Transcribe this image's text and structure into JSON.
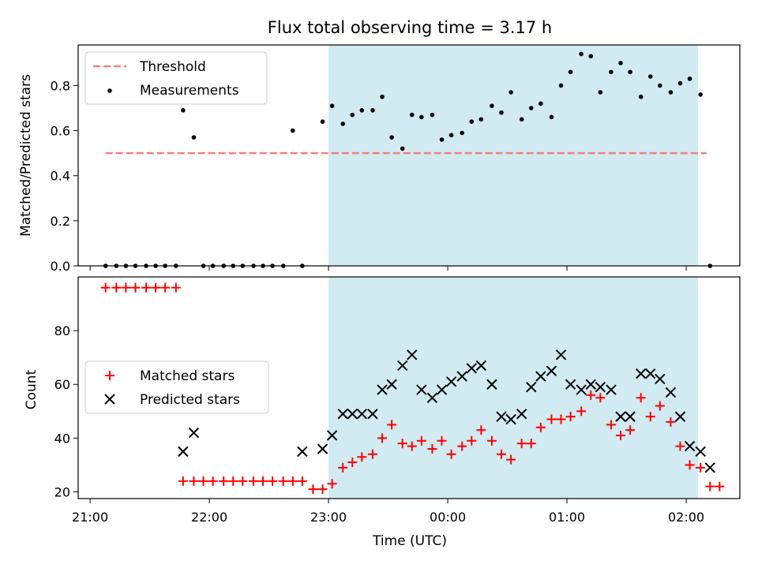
{
  "chart_data": [
    {
      "type": "scatter",
      "title": "Flux total observing time = 3.17 h",
      "xlabel": "",
      "ylabel": "Matched/Predicted stars",
      "xlim_hours": [
        20.9,
        26.45
      ],
      "ylim": [
        0,
        0.98
      ],
      "yticks": [
        0.0,
        0.2,
        0.4,
        0.6,
        0.8
      ],
      "ytick_labels": [
        "0.0",
        "0.2",
        "0.4",
        "0.6",
        "0.8"
      ],
      "shaded_span_hours": [
        23.0,
        26.1
      ],
      "threshold": {
        "name": "Threshold",
        "y": 0.5,
        "x_range_hours": [
          21.13,
          26.17
        ],
        "color": "#f08080",
        "style": "dashed"
      },
      "legend": {
        "placement": "top-left",
        "entries": [
          "Threshold",
          "Measurements"
        ]
      },
      "series": [
        {
          "name": "Measurements",
          "marker": "dot",
          "color": "#000000",
          "points": [
            [
              21.13,
              0.0
            ],
            [
              21.22,
              0.0
            ],
            [
              21.3,
              0.0
            ],
            [
              21.38,
              0.0
            ],
            [
              21.47,
              0.0
            ],
            [
              21.55,
              0.0
            ],
            [
              21.63,
              0.0
            ],
            [
              21.72,
              0.0
            ],
            [
              21.78,
              0.69
            ],
            [
              21.87,
              0.57
            ],
            [
              21.95,
              0.0
            ],
            [
              22.03,
              0.0
            ],
            [
              22.12,
              0.0
            ],
            [
              22.2,
              0.0
            ],
            [
              22.28,
              0.0
            ],
            [
              22.37,
              0.0
            ],
            [
              22.45,
              0.0
            ],
            [
              22.53,
              0.0
            ],
            [
              22.62,
              0.0
            ],
            [
              22.7,
              0.6
            ],
            [
              22.78,
              0.0
            ],
            [
              22.95,
              0.64
            ],
            [
              23.03,
              0.71
            ],
            [
              23.12,
              0.63
            ],
            [
              23.2,
              0.67
            ],
            [
              23.28,
              0.69
            ],
            [
              23.37,
              0.69
            ],
            [
              23.45,
              0.75
            ],
            [
              23.53,
              0.57
            ],
            [
              23.62,
              0.52
            ],
            [
              23.7,
              0.67
            ],
            [
              23.78,
              0.66
            ],
            [
              23.87,
              0.67
            ],
            [
              23.95,
              0.56
            ],
            [
              24.03,
              0.58
            ],
            [
              24.12,
              0.59
            ],
            [
              24.2,
              0.64
            ],
            [
              24.28,
              0.65
            ],
            [
              24.37,
              0.71
            ],
            [
              24.45,
              0.68
            ],
            [
              24.53,
              0.77
            ],
            [
              24.62,
              0.65
            ],
            [
              24.7,
              0.7
            ],
            [
              24.78,
              0.72
            ],
            [
              24.87,
              0.66
            ],
            [
              24.95,
              0.8
            ],
            [
              25.03,
              0.86
            ],
            [
              25.12,
              0.94
            ],
            [
              25.2,
              0.93
            ],
            [
              25.28,
              0.77
            ],
            [
              25.37,
              0.86
            ],
            [
              25.45,
              0.9
            ],
            [
              25.53,
              0.86
            ],
            [
              25.62,
              0.75
            ],
            [
              25.7,
              0.84
            ],
            [
              25.78,
              0.8
            ],
            [
              25.87,
              0.77
            ],
            [
              25.95,
              0.81
            ],
            [
              26.03,
              0.83
            ],
            [
              26.12,
              0.76
            ],
            [
              26.2,
              0.0
            ]
          ]
        }
      ]
    },
    {
      "type": "scatter",
      "title": "",
      "xlabel": "Time (UTC)",
      "ylabel": "Count",
      "xlim_hours": [
        20.9,
        26.45
      ],
      "ylim": [
        17.5,
        100
      ],
      "yticks": [
        20,
        40,
        60,
        80
      ],
      "ytick_labels": [
        "20",
        "40",
        "60",
        "80"
      ],
      "xticks_hours": [
        21,
        22,
        23,
        24,
        25,
        26
      ],
      "xtick_labels": [
        "21:00",
        "22:00",
        "23:00",
        "00:00",
        "01:00",
        "02:00"
      ],
      "shaded_span_hours": [
        23.0,
        26.1
      ],
      "legend": {
        "placement": "center-left",
        "entries": [
          "Matched stars",
          "Predicted stars"
        ]
      },
      "series": [
        {
          "name": "Matched stars",
          "marker": "plus",
          "color": "#ff0000",
          "points": [
            [
              21.13,
              96
            ],
            [
              21.22,
              96
            ],
            [
              21.3,
              96
            ],
            [
              21.38,
              96
            ],
            [
              21.47,
              96
            ],
            [
              21.55,
              96
            ],
            [
              21.63,
              96
            ],
            [
              21.72,
              96
            ],
            [
              21.78,
              24
            ],
            [
              21.87,
              24
            ],
            [
              21.95,
              24
            ],
            [
              22.03,
              24
            ],
            [
              22.12,
              24
            ],
            [
              22.2,
              24
            ],
            [
              22.28,
              24
            ],
            [
              22.37,
              24
            ],
            [
              22.45,
              24
            ],
            [
              22.53,
              24
            ],
            [
              22.62,
              24
            ],
            [
              22.7,
              24
            ],
            [
              22.78,
              24
            ],
            [
              22.87,
              21
            ],
            [
              22.95,
              21
            ],
            [
              23.03,
              23
            ],
            [
              23.12,
              29
            ],
            [
              23.2,
              31
            ],
            [
              23.28,
              33
            ],
            [
              23.37,
              34
            ],
            [
              23.45,
              40
            ],
            [
              23.53,
              45
            ],
            [
              23.62,
              38
            ],
            [
              23.7,
              37
            ],
            [
              23.78,
              39
            ],
            [
              23.87,
              36
            ],
            [
              23.95,
              39
            ],
            [
              24.03,
              34
            ],
            [
              24.12,
              37
            ],
            [
              24.2,
              39
            ],
            [
              24.28,
              43
            ],
            [
              24.37,
              39
            ],
            [
              24.45,
              34
            ],
            [
              24.53,
              32
            ],
            [
              24.62,
              38
            ],
            [
              24.7,
              38
            ],
            [
              24.78,
              44
            ],
            [
              24.87,
              47
            ],
            [
              24.95,
              47
            ],
            [
              25.03,
              48
            ],
            [
              25.12,
              50
            ],
            [
              25.2,
              56
            ],
            [
              25.28,
              55
            ],
            [
              25.37,
              45
            ],
            [
              25.45,
              41
            ],
            [
              25.53,
              43
            ],
            [
              25.62,
              55
            ],
            [
              25.7,
              48
            ],
            [
              25.78,
              52
            ],
            [
              25.87,
              46
            ],
            [
              25.95,
              37
            ],
            [
              26.03,
              30
            ],
            [
              26.12,
              29
            ],
            [
              26.2,
              22
            ],
            [
              26.28,
              22
            ]
          ]
        },
        {
          "name": "Predicted stars",
          "marker": "x",
          "color": "#000000",
          "points": [
            [
              21.78,
              35
            ],
            [
              21.87,
              42
            ],
            [
              22.78,
              35
            ],
            [
              22.95,
              36
            ],
            [
              23.03,
              41
            ],
            [
              23.12,
              49
            ],
            [
              23.2,
              49
            ],
            [
              23.28,
              49
            ],
            [
              23.37,
              49
            ],
            [
              23.45,
              58
            ],
            [
              23.53,
              60
            ],
            [
              23.62,
              67
            ],
            [
              23.7,
              71
            ],
            [
              23.78,
              58
            ],
            [
              23.87,
              55
            ],
            [
              23.95,
              58
            ],
            [
              24.03,
              61
            ],
            [
              24.12,
              63
            ],
            [
              24.2,
              66
            ],
            [
              24.28,
              67
            ],
            [
              24.37,
              60
            ],
            [
              24.45,
              48
            ],
            [
              24.53,
              47
            ],
            [
              24.62,
              49
            ],
            [
              24.7,
              59
            ],
            [
              24.78,
              63
            ],
            [
              24.87,
              65
            ],
            [
              24.95,
              71
            ],
            [
              25.03,
              60
            ],
            [
              25.12,
              58
            ],
            [
              25.2,
              60
            ],
            [
              25.28,
              59
            ],
            [
              25.37,
              58
            ],
            [
              25.45,
              48
            ],
            [
              25.53,
              48
            ],
            [
              25.62,
              64
            ],
            [
              25.7,
              64
            ],
            [
              25.78,
              62
            ],
            [
              25.87,
              57
            ],
            [
              25.95,
              48
            ],
            [
              26.03,
              37
            ],
            [
              26.12,
              35
            ],
            [
              26.2,
              29
            ]
          ]
        }
      ]
    }
  ],
  "colors": {
    "span": "#add8e6",
    "threshold": "#f08080",
    "matched": "#ff0000",
    "predicted": "#000000"
  }
}
